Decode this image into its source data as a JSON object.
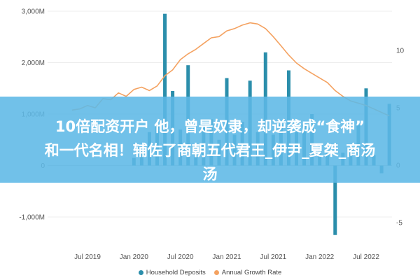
{
  "chart_data": {
    "type": "bar",
    "title": "",
    "xlabel": "",
    "ylabel": "",
    "y_axis_left": {
      "ticks": [
        3000,
        2000,
        1000,
        0,
        -1000
      ],
      "tick_labels": [
        "3,000M",
        "2,000M",
        "1,000M",
        "0",
        "-1,000M"
      ],
      "range": [
        -1400,
        3150
      ]
    },
    "y_axis_right": {
      "ticks": [
        10,
        5,
        0,
        -5
      ],
      "tick_labels": [
        "10",
        "5",
        "0",
        "-5"
      ],
      "range": [
        -5.8,
        12.9
      ]
    },
    "x_tick_labels": [
      "Jul 2019",
      "Jan 2020",
      "Jul 2020",
      "Jan 2021",
      "Jul 2021",
      "Jan 2022",
      "Jul 2022"
    ],
    "grid": true,
    "legend_position": "bottom",
    "series": [
      {
        "name": "Household Deposits",
        "type": "bar",
        "axis": "left",
        "color": "#2b8eab",
        "dates": [
          "Jan 2020",
          "Feb 2020",
          "Mar 2020",
          "Apr 2020",
          "May 2020",
          "Jun 2020",
          "Jul 2020",
          "Aug 2020",
          "Sep 2020",
          "Oct 2020",
          "Nov 2020",
          "Dec 2020",
          "Jan 2021",
          "Feb 2021",
          "Mar 2021",
          "Apr 2021",
          "May 2021",
          "Jun 2021",
          "Jul 2021",
          "Aug 2021",
          "Sep 2021",
          "Oct 2021",
          "Nov 2021",
          "Dec 2021",
          "Jan 2022",
          "Feb 2022",
          "Mar 2022",
          "Apr 2022",
          "May 2022",
          "Jun 2022",
          "Jul 2022",
          "Aug 2022",
          "Sep 2022",
          "Oct 2022"
        ],
        "values": [
          150,
          300,
          650,
          800,
          2950,
          1450,
          700,
          1950,
          400,
          800,
          900,
          500,
          1700,
          600,
          850,
          1650,
          650,
          2200,
          600,
          800,
          1850,
          700,
          800,
          1000,
          400,
          300,
          -1350,
          250,
          350,
          800,
          1500,
          200,
          -150,
          1200
        ]
      },
      {
        "name": "Annual Growth Rate",
        "type": "line",
        "axis": "right",
        "color": "#f4a261",
        "dates": [
          "May 2019",
          "Jun 2019",
          "Jul 2019",
          "Aug 2019",
          "Sep 2019",
          "Oct 2019",
          "Nov 2019",
          "Dec 2019",
          "Jan 2020",
          "Feb 2020",
          "Mar 2020",
          "Apr 2020",
          "May 2020",
          "Jun 2020",
          "Jul 2020",
          "Aug 2020",
          "Sep 2020",
          "Oct 2020",
          "Nov 2020",
          "Dec 2020",
          "Jan 2021",
          "Feb 2021",
          "Mar 2021",
          "Apr 2021",
          "May 2021",
          "Jun 2021",
          "Jul 2021",
          "Aug 2021",
          "Sep 2021",
          "Oct 2021",
          "Nov 2021",
          "Dec 2021",
          "Jan 2022",
          "Feb 2022",
          "Mar 2022",
          "Apr 2022",
          "May 2022",
          "Jun 2022",
          "Jul 2022",
          "Aug 2022",
          "Sep 2022",
          "Oct 2022"
        ],
        "values": [
          4.8,
          4.9,
          5.2,
          5.0,
          5.8,
          5.7,
          6.3,
          6.0,
          6.6,
          6.8,
          6.5,
          6.9,
          7.8,
          8.3,
          9.2,
          9.7,
          10.1,
          10.6,
          11.1,
          11.2,
          11.7,
          11.9,
          12.2,
          12.4,
          12.3,
          11.9,
          11.2,
          10.4,
          9.6,
          8.9,
          8.4,
          8.0,
          7.6,
          7.2,
          6.5,
          6.0,
          5.6,
          5.4,
          5.2,
          4.9,
          4.6,
          4.3
        ]
      }
    ]
  },
  "overlay_banner": {
    "line1": "10倍配资开户 他，曾是奴隶，却逆袭成“食神”",
    "line2": "和一代名相！辅佐了商朝五代君王_伊尹_夏桀_商汤",
    "line3": "汤"
  },
  "legend": {
    "items": [
      {
        "label": "Household Deposits",
        "color": "#2b8eab"
      },
      {
        "label": "Annual Growth Rate",
        "color": "#f4a261"
      }
    ]
  }
}
